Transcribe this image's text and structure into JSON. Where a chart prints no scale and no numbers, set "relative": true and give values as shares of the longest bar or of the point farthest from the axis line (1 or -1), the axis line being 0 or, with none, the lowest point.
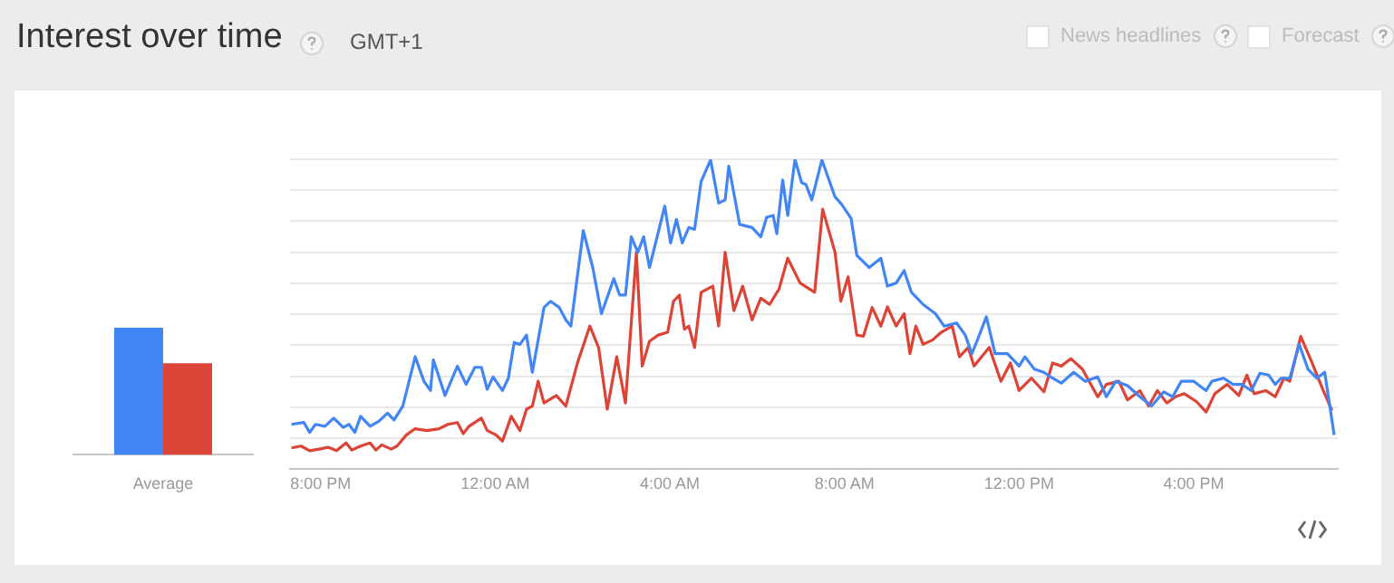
{
  "chart_data": [
    {
      "type": "bar",
      "categories": [
        "Average"
      ],
      "relative": true,
      "series": [
        {
          "color": "#4285f4",
          "values": [
            1
          ]
        },
        {
          "color": "#db4437",
          "values": [
            0.72
          ]
        }
      ]
    },
    {
      "type": "line",
      "title": "Interest over time",
      "subtitle": "GMT+1",
      "annotations": [
        "News headlines",
        "Forecast"
      ],
      "relative": true,
      "grid": "y",
      "xlim": [
        "--01-01T19:18",
        "--01-02T19:18"
      ],
      "xticks": [
        {
          "value": "--01-01T20:00",
          "label": "8:00 PM"
        },
        {
          "value": "--01-02T00:00",
          "label": "12:00 AM"
        },
        {
          "value": "--01-02T04:00",
          "label": "4:00 AM"
        },
        {
          "value": "--01-02T08:00",
          "label": "8:00 AM"
        },
        {
          "value": "--01-02T12:00",
          "label": "12:00 PM"
        },
        {
          "value": "--01-02T16:00",
          "label": "4:00 PM"
        }
      ],
      "series": [
        {
          "color": "#4285f4",
          "x": [
            "--01-01T19:20",
            "--01-01T19:37",
            "--01-01T19:45",
            "--01-01T19:53",
            "--01-01T20:06",
            "--01-01T20:18",
            "--01-01T20:31",
            "--01-01T20:39",
            "--01-01T20:47",
            "--01-01T20:55",
            "--01-01T21:08",
            "--01-01T21:20",
            "--01-01T21:32",
            "--01-01T21:41",
            "--01-01T21:53",
            "--01-01T22:10",
            "--01-01T22:22",
            "--01-01T22:31",
            "--01-01T22:35",
            "--01-01T22:51",
            "--01-01T23:08",
            "--01-01T23:20",
            "--01-01T23:32",
            "--01-01T23:41",
            "--01-01T23:49",
            "--01-01T23:57",
            "--01-02T00:10",
            "--01-02T00:18",
            "--01-02T00:26",
            "--01-02T00:34",
            "--01-02T00:43",
            "--01-02T00:51",
            "--01-02T01:07",
            "--01-02T01:16",
            "--01-02T01:28",
            "--01-02T01:37",
            "--01-02T01:44",
            "--01-02T02:01",
            "--01-02T02:14",
            "--01-02T02:26",
            "--01-02T02:43",
            "--01-02T02:51",
            "--01-02T02:59",
            "--01-02T03:07",
            "--01-02T03:16",
            "--01-02T03:24",
            "--01-02T03:32",
            "--01-02T03:53",
            "--01-02T04:01",
            "--01-02T04:09",
            "--01-02T04:17",
            "--01-02T04:26",
            "--01-02T04:34",
            "--01-02T04:43",
            "--01-02T04:56",
            "--01-02T05:07",
            "--01-02T05:16",
            "--01-02T05:21",
            "--01-02T05:36",
            "--01-02T05:53",
            "--01-02T06:05",
            "--01-02T06:13",
            "--01-02T06:22",
            "--01-02T06:27",
            "--01-02T06:35",
            "--01-02T06:42",
            "--01-02T06:52",
            "--01-02T07:01",
            "--01-02T07:07",
            "--01-02T07:15",
            "--01-02T07:29",
            "--01-02T07:47",
            "--01-02T07:56",
            "--01-02T08:09",
            "--01-02T08:17",
            "--01-02T08:34",
            "--01-02T08:50",
            "--01-02T08:59",
            "--01-02T09:11",
            "--01-02T09:22",
            "--01-02T09:32",
            "--01-02T09:48",
            "--01-02T10:05",
            "--01-02T10:17",
            "--01-02T10:34",
            "--01-02T10:46",
            "--01-02T10:55",
            "--01-02T11:02",
            "--01-02T11:15",
            "--01-02T11:27",
            "--01-02T11:44",
            "--01-02T12:00",
            "--01-02T12:08",
            "--01-02T12:21",
            "--01-02T12:34",
            "--01-02T12:46",
            "--01-02T12:58",
            "--01-02T13:15",
            "--01-02T13:31",
            "--01-02T13:48",
            "--01-02T14:00",
            "--01-02T14:13",
            "--01-02T14:29",
            "--01-02T14:46",
            "--01-02T15:02",
            "--01-02T15:19",
            "--01-02T15:31",
            "--01-02T15:43",
            "--01-02T16:00",
            "--01-02T16:17",
            "--01-02T16:25",
            "--01-02T16:41",
            "--01-02T16:54",
            "--01-02T17:06",
            "--01-02T17:19",
            "--01-02T17:31",
            "--01-02T17:43",
            "--01-02T17:52",
            "--01-02T18:00",
            "--01-02T18:12",
            "--01-02T18:25",
            "--01-02T18:37",
            "--01-02T18:49",
            "--01-02T19:00",
            "--01-02T19:13"
          ],
          "values": [
            0.145,
            0.151,
            0.119,
            0.145,
            0.139,
            0.165,
            0.135,
            0.145,
            0.119,
            0.171,
            0.139,
            0.155,
            0.181,
            0.159,
            0.204,
            0.363,
            0.284,
            0.254,
            0.353,
            0.238,
            0.333,
            0.274,
            0.329,
            0.329,
            0.258,
            0.298,
            0.254,
            0.294,
            0.409,
            0.403,
            0.433,
            0.313,
            0.522,
            0.542,
            0.522,
            0.482,
            0.462,
            0.77,
            0.651,
            0.502,
            0.615,
            0.562,
            0.562,
            0.75,
            0.7,
            0.75,
            0.651,
            0.849,
            0.73,
            0.806,
            0.73,
            0.78,
            0.774,
            0.929,
            0.998,
            0.859,
            0.869,
            0.978,
            0.79,
            0.78,
            0.75,
            0.813,
            0.819,
            0.76,
            0.933,
            0.819,
            1,
            0.925,
            0.919,
            0.869,
            0.998,
            0.879,
            0.855,
            0.81,
            0.69,
            0.651,
            0.681,
            0.591,
            0.601,
            0.641,
            0.571,
            0.532,
            0.502,
            0.462,
            0.472,
            0.433,
            0.373,
            0.413,
            0.492,
            0.373,
            0.373,
            0.333,
            0.363,
            0.323,
            0.313,
            0.294,
            0.278,
            0.313,
            0.284,
            0.298,
            0.234,
            0.284,
            0.27,
            0.234,
            0.204,
            0.25,
            0.234,
            0.284,
            0.284,
            0.254,
            0.284,
            0.294,
            0.274,
            0.274,
            0.254,
            0.31,
            0.304,
            0.274,
            0.294,
            0.294,
            0.403,
            0.323,
            0.294,
            0.313,
            0.111
          ]
        },
        {
          "color": "#db4437",
          "x": [
            "--01-01T19:20",
            "--01-01T19:33",
            "--01-01T19:45",
            "--01-01T19:58",
            "--01-01T20:10",
            "--01-01T20:22",
            "--01-01T20:35",
            "--01-01T20:43",
            "--01-01T20:55",
            "--01-01T21:08",
            "--01-01T21:16",
            "--01-01T21:24",
            "--01-01T21:37",
            "--01-01T21:45",
            "--01-01T21:58",
            "--01-01T22:10",
            "--01-01T22:26",
            "--01-01T22:43",
            "--01-01T22:55",
            "--01-01T23:08",
            "--01-01T23:16",
            "--01-01T23:24",
            "--01-01T23:41",
            "--01-01T23:49",
            "--01-02T00:01",
            "--01-02T00:10",
            "--01-02T00:22",
            "--01-02T00:34",
            "--01-02T00:43",
            "--01-02T00:51",
            "--01-02T00:59",
            "--01-02T01:07",
            "--01-02T01:24",
            "--01-02T01:37",
            "--01-02T01:53",
            "--01-02T02:10",
            "--01-02T02:22",
            "--01-02T02:34",
            "--01-02T02:47",
            "--01-02T02:59",
            "--01-02T03:14",
            "--01-02T03:22",
            "--01-02T03:32",
            "--01-02T03:44",
            "--01-02T03:57",
            "--01-02T04:05",
            "--01-02T04:13",
            "--01-02T04:20",
            "--01-02T04:26",
            "--01-02T04:34",
            "--01-02T04:43",
            "--01-02T04:59",
            "--01-02T05:07",
            "--01-02T05:16",
            "--01-02T05:28",
            "--01-02T05:40",
            "--01-02T05:53",
            "--01-02T06:05",
            "--01-02T06:17",
            "--01-02T06:30",
            "--01-02T06:42",
            "--01-02T06:59",
            "--01-02T07:19",
            "--01-02T07:30",
            "--01-02T07:47",
            "--01-02T07:55",
            "--01-02T08:05",
            "--01-02T08:17",
            "--01-02T08:26",
            "--01-02T08:38",
            "--01-02T08:50",
            "--01-02T08:59",
            "--01-02T09:11",
            "--01-02T09:22",
            "--01-02T09:30",
            "--01-02T09:38",
            "--01-02T09:48",
            "--01-02T10:01",
            "--01-02T10:13",
            "--01-02T10:28",
            "--01-02T10:38",
            "--01-02T10:50",
            "--01-02T10:58",
            "--01-02T11:19",
            "--01-02T11:35",
            "--01-02T11:48",
            "--01-02T12:00",
            "--01-02T12:17",
            "--01-02T12:34",
            "--01-02T12:46",
            "--01-02T12:58",
            "--01-02T13:11",
            "--01-02T13:27",
            "--01-02T13:48",
            "--01-02T14:00",
            "--01-02T14:17",
            "--01-02T14:29",
            "--01-02T14:46",
            "--01-02T14:58",
            "--01-02T15:10",
            "--01-02T15:23",
            "--01-02T15:35",
            "--01-02T15:47",
            "--01-02T16:04",
            "--01-02T16:17",
            "--01-02T16:29",
            "--01-02T16:46",
            "--01-02T17:02",
            "--01-02T17:13",
            "--01-02T17:23",
            "--01-02T17:39",
            "--01-02T17:52",
            "--01-02T18:04",
            "--01-02T18:12",
            "--01-02T18:27",
            "--01-02T18:41",
            "--01-02T18:58",
            "--01-02T19:10"
          ],
          "values": [
            0.069,
            0.075,
            0.06,
            0.065,
            0.071,
            0.06,
            0.085,
            0.062,
            0.075,
            0.085,
            0.062,
            0.079,
            0.065,
            0.075,
            0.111,
            0.131,
            0.125,
            0.131,
            0.145,
            0.151,
            0.115,
            0.139,
            0.165,
            0.125,
            0.111,
            0.091,
            0.171,
            0.125,
            0.194,
            0.204,
            0.284,
            0.214,
            0.238,
            0.204,
            0.343,
            0.462,
            0.393,
            0.194,
            0.363,
            0.214,
            0.7,
            0.333,
            0.413,
            0.433,
            0.442,
            0.542,
            0.562,
            0.452,
            0.462,
            0.393,
            0.571,
            0.591,
            0.462,
            0.7,
            0.512,
            0.591,
            0.482,
            0.552,
            0.532,
            0.581,
            0.681,
            0.601,
            0.571,
            0.839,
            0.7,
            0.542,
            0.621,
            0.433,
            0.429,
            0.522,
            0.462,
            0.524,
            0.462,
            0.502,
            0.373,
            0.462,
            0.403,
            0.417,
            0.442,
            0.462,
            0.363,
            0.393,
            0.333,
            0.393,
            0.284,
            0.343,
            0.254,
            0.294,
            0.25,
            0.343,
            0.333,
            0.357,
            0.323,
            0.234,
            0.274,
            0.284,
            0.224,
            0.254,
            0.204,
            0.254,
            0.214,
            0.234,
            0.244,
            0.218,
            0.185,
            0.244,
            0.274,
            0.238,
            0.304,
            0.244,
            0.254,
            0.234,
            0.294,
            0.284,
            0.429,
            0.353,
            0.254,
            0.19
          ]
        }
      ]
    }
  ]
}
